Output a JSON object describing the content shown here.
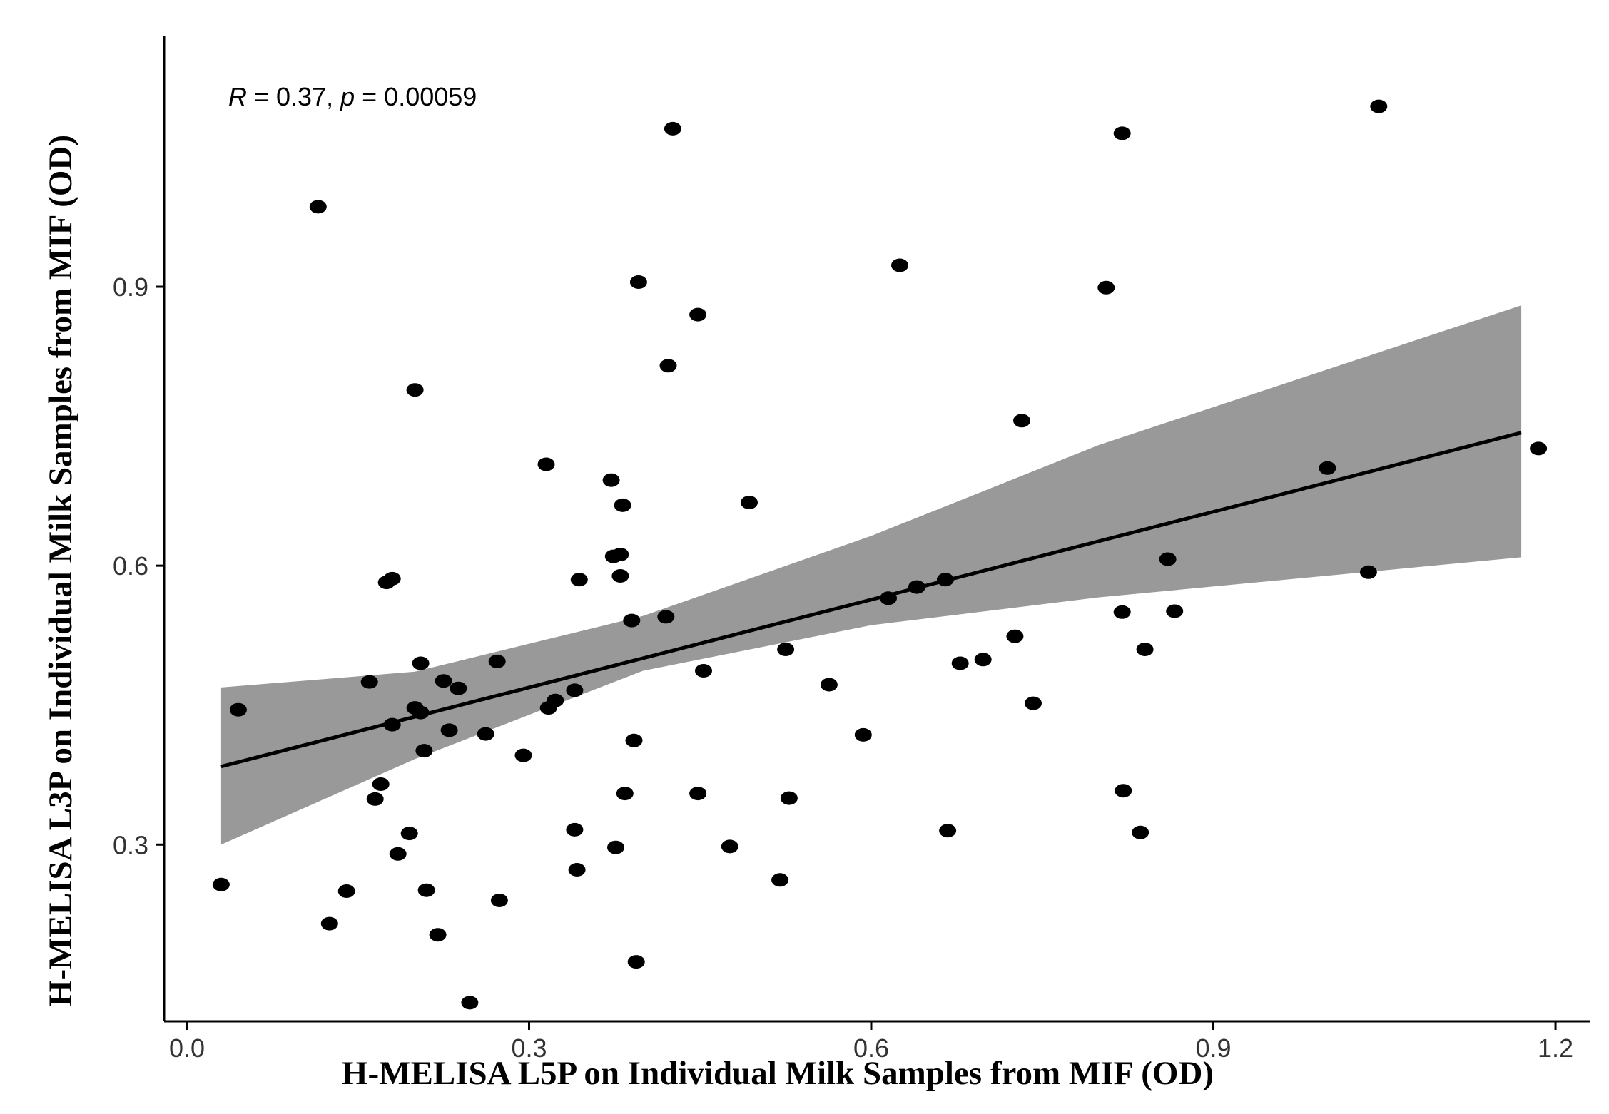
{
  "chart_data": {
    "type": "scatter",
    "xlabel": "H-MELISA L5P on Individual Milk Samples from MIF (OD)",
    "ylabel": "H-MELISA L3P on Individual Milk Samples from MIF (OD)",
    "xlim": [
      -0.02,
      1.23
    ],
    "ylim": [
      0.11,
      1.17
    ],
    "x_ticks": [
      0.0,
      0.3,
      0.6,
      0.9,
      1.2
    ],
    "x_tick_labels": [
      "0.0",
      "0.3",
      "0.6",
      "0.9",
      "1.2"
    ],
    "y_ticks": [
      0.3,
      0.6,
      0.9
    ],
    "y_tick_labels": [
      "0.3",
      "0.6",
      "0.9"
    ],
    "grid": false,
    "legend": "none",
    "annotation": {
      "r_symbol": "R",
      "r_value": " = 0.37, ",
      "p_symbol": "p",
      "p_value": " = 0.00059"
    },
    "regression": {
      "x_start": 0.03,
      "x_end": 1.17,
      "y_start": 0.384,
      "y_end": 0.743,
      "band": [
        {
          "x": 0.03,
          "lower": 0.3,
          "upper": 0.469
        },
        {
          "x": 0.2,
          "lower": 0.392,
          "upper": 0.486
        },
        {
          "x": 0.4,
          "lower": 0.487,
          "upper": 0.546
        },
        {
          "x": 0.6,
          "lower": 0.536,
          "upper": 0.632
        },
        {
          "x": 0.8,
          "lower": 0.566,
          "upper": 0.73
        },
        {
          "x": 1.17,
          "lower": 0.609,
          "upper": 0.88
        }
      ]
    },
    "points": [
      {
        "x": 0.03,
        "y": 0.257
      },
      {
        "x": 0.045,
        "y": 0.445
      },
      {
        "x": 0.115,
        "y": 0.986
      },
      {
        "x": 0.125,
        "y": 0.215
      },
      {
        "x": 0.14,
        "y": 0.25
      },
      {
        "x": 0.16,
        "y": 0.475
      },
      {
        "x": 0.165,
        "y": 0.349
      },
      {
        "x": 0.17,
        "y": 0.365
      },
      {
        "x": 0.175,
        "y": 0.582
      },
      {
        "x": 0.18,
        "y": 0.586
      },
      {
        "x": 0.18,
        "y": 0.429
      },
      {
        "x": 0.185,
        "y": 0.29
      },
      {
        "x": 0.195,
        "y": 0.312
      },
      {
        "x": 0.2,
        "y": 0.447
      },
      {
        "x": 0.2,
        "y": 0.789
      },
      {
        "x": 0.205,
        "y": 0.442
      },
      {
        "x": 0.205,
        "y": 0.495
      },
      {
        "x": 0.208,
        "y": 0.401
      },
      {
        "x": 0.21,
        "y": 0.251
      },
      {
        "x": 0.22,
        "y": 0.203
      },
      {
        "x": 0.225,
        "y": 0.476
      },
      {
        "x": 0.23,
        "y": 0.423
      },
      {
        "x": 0.238,
        "y": 0.468
      },
      {
        "x": 0.248,
        "y": 0.13
      },
      {
        "x": 0.262,
        "y": 0.419
      },
      {
        "x": 0.272,
        "y": 0.497
      },
      {
        "x": 0.274,
        "y": 0.24
      },
      {
        "x": 0.295,
        "y": 0.396
      },
      {
        "x": 0.315,
        "y": 0.709
      },
      {
        "x": 0.317,
        "y": 0.447
      },
      {
        "x": 0.323,
        "y": 0.455
      },
      {
        "x": 0.34,
        "y": 0.466
      },
      {
        "x": 0.34,
        "y": 0.316
      },
      {
        "x": 0.342,
        "y": 0.273
      },
      {
        "x": 0.344,
        "y": 0.585
      },
      {
        "x": 0.372,
        "y": 0.692
      },
      {
        "x": 0.374,
        "y": 0.61
      },
      {
        "x": 0.376,
        "y": 0.297
      },
      {
        "x": 0.38,
        "y": 0.612
      },
      {
        "x": 0.38,
        "y": 0.589
      },
      {
        "x": 0.382,
        "y": 0.665
      },
      {
        "x": 0.384,
        "y": 0.355
      },
      {
        "x": 0.39,
        "y": 0.541
      },
      {
        "x": 0.392,
        "y": 0.412
      },
      {
        "x": 0.394,
        "y": 0.174
      },
      {
        "x": 0.396,
        "y": 0.905
      },
      {
        "x": 0.42,
        "y": 0.545
      },
      {
        "x": 0.422,
        "y": 0.815
      },
      {
        "x": 0.426,
        "y": 1.07
      },
      {
        "x": 0.448,
        "y": 0.355
      },
      {
        "x": 0.448,
        "y": 0.87
      },
      {
        "x": 0.453,
        "y": 0.487
      },
      {
        "x": 0.476,
        "y": 0.298
      },
      {
        "x": 0.493,
        "y": 0.668
      },
      {
        "x": 0.52,
        "y": 0.262
      },
      {
        "x": 0.525,
        "y": 0.51
      },
      {
        "x": 0.528,
        "y": 0.35
      },
      {
        "x": 0.563,
        "y": 0.472
      },
      {
        "x": 0.593,
        "y": 0.418
      },
      {
        "x": 0.615,
        "y": 0.565
      },
      {
        "x": 0.625,
        "y": 0.923
      },
      {
        "x": 0.64,
        "y": 0.577
      },
      {
        "x": 0.665,
        "y": 0.585
      },
      {
        "x": 0.667,
        "y": 0.315
      },
      {
        "x": 0.678,
        "y": 0.495
      },
      {
        "x": 0.698,
        "y": 0.499
      },
      {
        "x": 0.726,
        "y": 0.524
      },
      {
        "x": 0.732,
        "y": 0.756
      },
      {
        "x": 0.742,
        "y": 0.452
      },
      {
        "x": 0.806,
        "y": 0.899
      },
      {
        "x": 0.82,
        "y": 1.065
      },
      {
        "x": 0.82,
        "y": 0.55
      },
      {
        "x": 0.821,
        "y": 0.358
      },
      {
        "x": 0.836,
        "y": 0.313
      },
      {
        "x": 0.84,
        "y": 0.51
      },
      {
        "x": 0.86,
        "y": 0.607
      },
      {
        "x": 0.866,
        "y": 0.551
      },
      {
        "x": 1.0,
        "y": 0.705
      },
      {
        "x": 1.036,
        "y": 0.593
      },
      {
        "x": 1.045,
        "y": 1.094
      },
      {
        "x": 1.185,
        "y": 0.726
      }
    ]
  }
}
